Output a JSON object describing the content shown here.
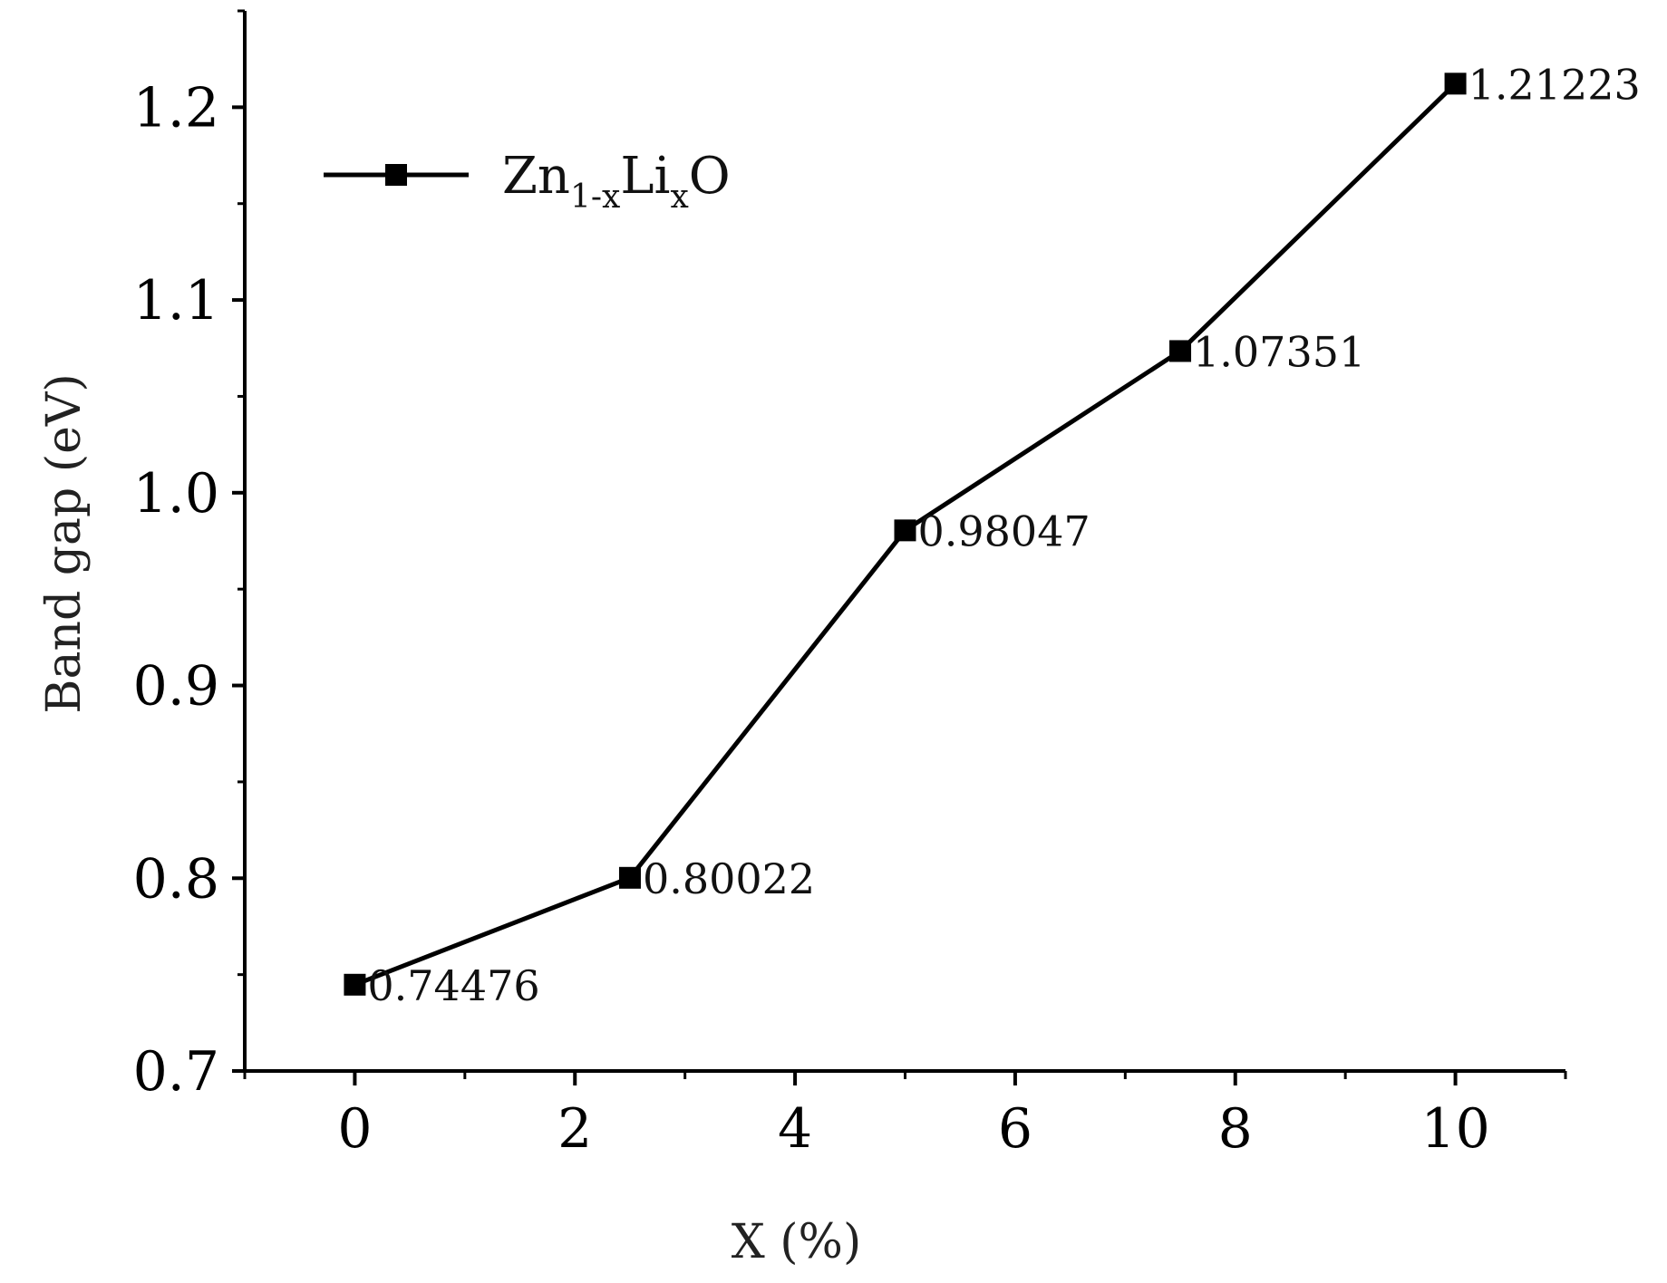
{
  "chart_data": {
    "type": "line",
    "xlabel": "X (%)",
    "ylabel": "Band gap (eV)",
    "xlim": [
      -1,
      11
    ],
    "ylim": [
      0.7,
      1.25
    ],
    "x_ticks": [
      0,
      2,
      4,
      6,
      8,
      10
    ],
    "x_tick_labels": [
      "0",
      "2",
      "4",
      "6",
      "8",
      "10"
    ],
    "y_ticks": [
      0.7,
      0.8,
      0.9,
      1.0,
      1.1,
      1.2
    ],
    "y_tick_labels": [
      "0.7",
      "0.8",
      "0.9",
      "1.0",
      "1.1",
      "1.2"
    ],
    "grid": false,
    "legend_position": "top-left",
    "series": [
      {
        "name": "Zn1-xLixO",
        "legend": {
          "base": "Zn",
          "sub1": "1-x",
          "mid": "Li",
          "sub2": "x",
          "tail": "O"
        },
        "marker": "square",
        "color": "#000000",
        "x": [
          0,
          2.5,
          5,
          7.5,
          10
        ],
        "y": [
          0.74476,
          0.80022,
          0.98047,
          1.07351,
          1.21223
        ],
        "labels": [
          "0.74476",
          "0.80022",
          "0.98047",
          "1.07351",
          "1.21223"
        ]
      }
    ]
  }
}
